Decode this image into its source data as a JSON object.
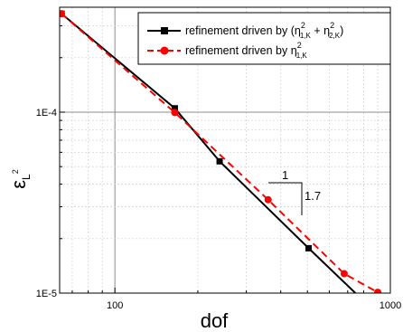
{
  "chart_data": {
    "type": "line",
    "x_scale": "log",
    "y_scale": "log",
    "xlim": [
      63,
      1000
    ],
    "ylim": [
      1e-05,
      0.00038
    ],
    "x_ticks": [
      {
        "value": 100,
        "label": "100"
      },
      {
        "value": 1000,
        "label": "1000"
      }
    ],
    "y_ticks": [
      {
        "value": 1e-05,
        "label": "1E-5"
      },
      {
        "value": 0.0001,
        "label": "1E-4"
      }
    ],
    "xlabel": "dof",
    "ylabel": {
      "main": "ε",
      "sub": "L",
      "sup": "2"
    },
    "grid": true,
    "legend_placement": "top-right",
    "legend": [
      {
        "series": 0,
        "prefix": "refinement driven by (",
        "term1": {
          "base": "η",
          "sup": "2",
          "sub": "1,K"
        },
        "plus": " + ",
        "term2": {
          "base": "η",
          "sup": "2",
          "sub": "2,K"
        },
        "suffix": ")"
      },
      {
        "series": 1,
        "prefix": "refinement driven by ",
        "term1": {
          "base": "η",
          "sup": "2",
          "sub": "1,K"
        }
      }
    ],
    "slope_triangle": {
      "run_label": "1",
      "rise_label": "1.7"
    },
    "series": [
      {
        "color": "#000000",
        "line": "solid",
        "marker": "square",
        "x": [
          64,
          165,
          240,
          505,
          760
        ],
        "y": [
          0.00035,
          0.000105,
          5.35e-05,
          1.77e-05,
          9.75e-06
        ]
      },
      {
        "color": "#ff0000",
        "line": "dashed",
        "marker": "circle",
        "x": [
          64,
          165,
          360,
          680,
          900
        ],
        "y": [
          0.00035,
          9.95e-05,
          3.28e-05,
          1.28e-05,
          1.01e-05
        ]
      }
    ]
  }
}
